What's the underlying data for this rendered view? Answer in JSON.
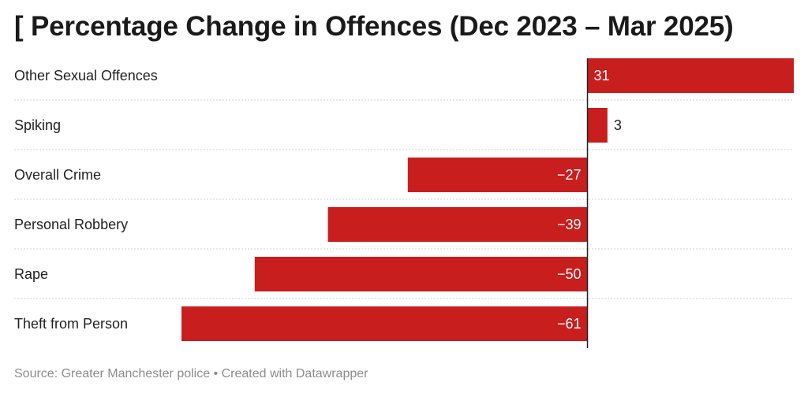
{
  "title": "[ Percentage Change in Offences (Dec 2023 – Mar 2025)",
  "source": "Source: Greater Manchester police • Created with Datawrapper",
  "chart_data": {
    "type": "bar",
    "orientation": "horizontal",
    "categories": [
      "Other Sexual Offences",
      "Spiking",
      "Overall Crime",
      "Personal Robbery",
      "Rape",
      "Theft from Person"
    ],
    "values": [
      31,
      3,
      -27,
      -39,
      -50,
      -61
    ],
    "value_labels": [
      "31",
      "3",
      "−27",
      "−39",
      "−50",
      "−61"
    ],
    "bar_color": "#c81e1e",
    "xlim": [
      -61,
      31
    ],
    "grid": "dotted row separators",
    "legend": "none"
  }
}
